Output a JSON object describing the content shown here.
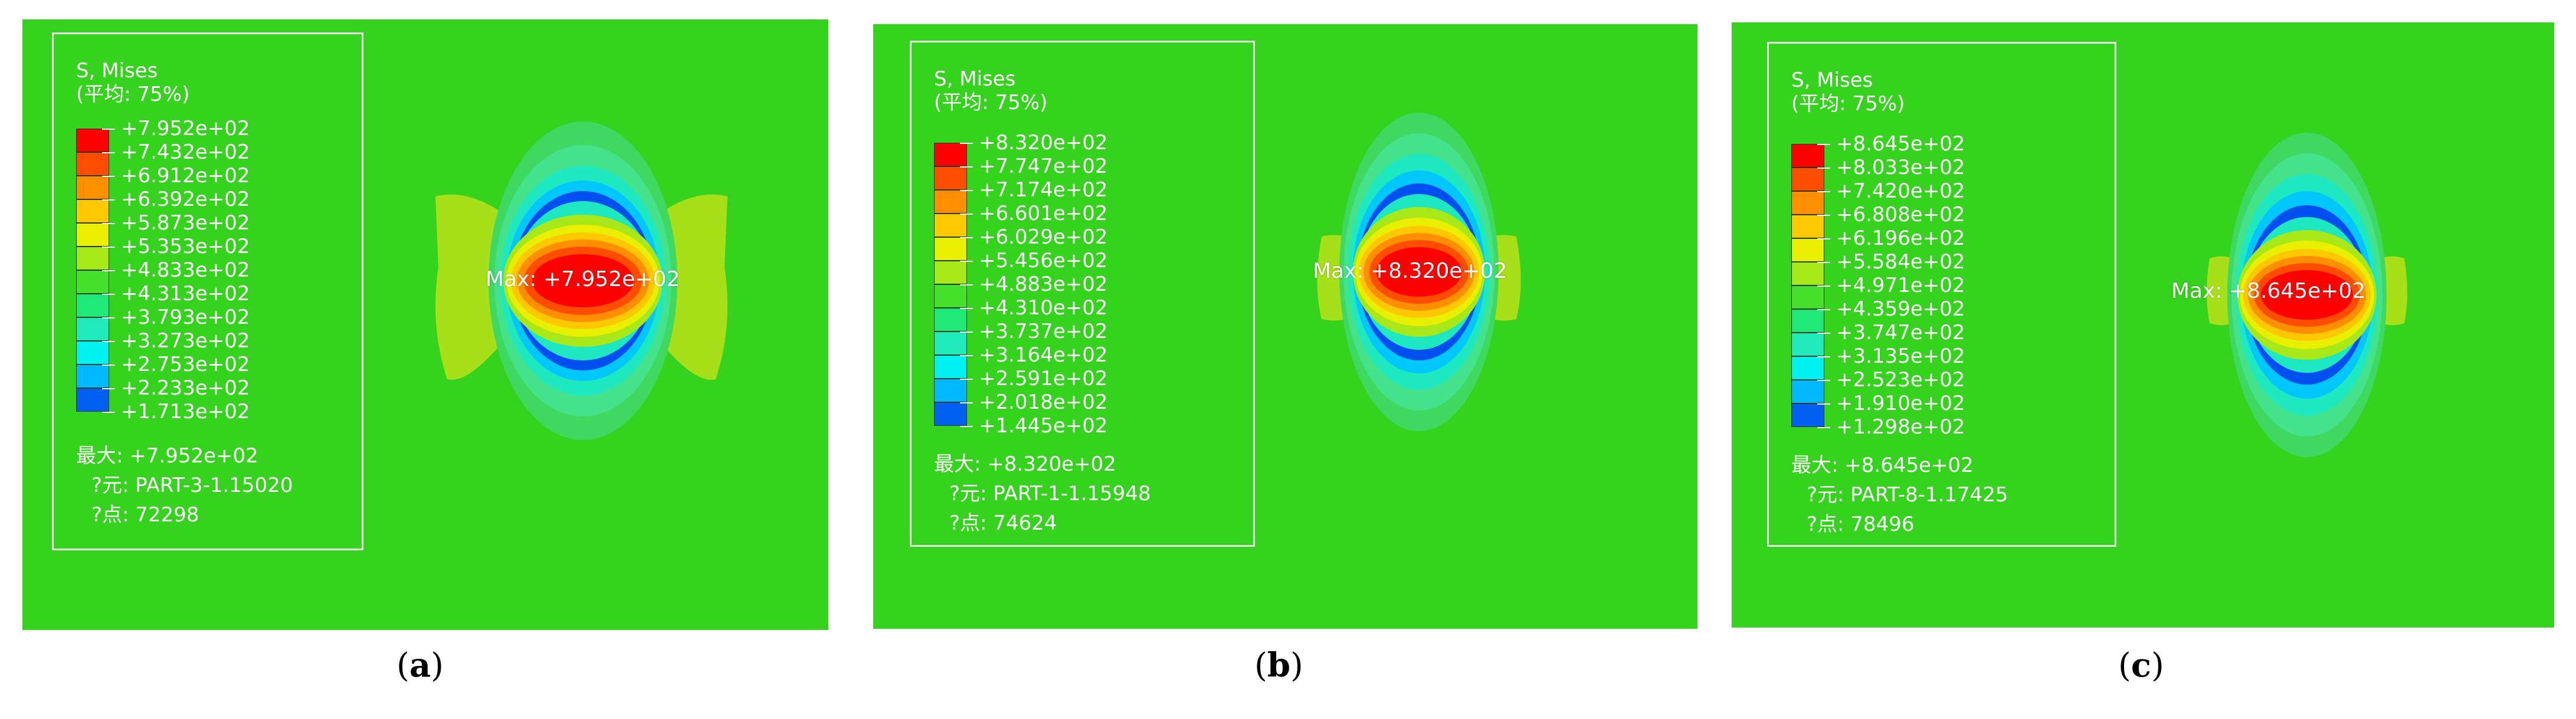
{
  "panels": [
    {
      "id": "a",
      "caption_open": "(",
      "caption_letter": "a",
      "caption_close": ")",
      "legend_title": "S, Mises",
      "legend_subtitle": "(平均: 75%)",
      "ticks": [
        "+7.952e+02",
        "+7.432e+02",
        "+6.912e+02",
        "+6.392e+02",
        "+5.873e+02",
        "+5.353e+02",
        "+4.833e+02",
        "+4.313e+02",
        "+3.793e+02",
        "+3.273e+02",
        "+2.753e+02",
        "+2.233e+02",
        "+1.713e+02"
      ],
      "info_max": "最大: +7.952e+02",
      "info_element": "?元: PART-3-1.15020",
      "info_node": "?点: 72298",
      "max_label": "Max: +7.952e+02"
    },
    {
      "id": "b",
      "caption_open": "(",
      "caption_letter": "b",
      "caption_close": ")",
      "legend_title": "S, Mises",
      "legend_subtitle": "(平均: 75%)",
      "ticks": [
        "+8.320e+02",
        "+7.747e+02",
        "+7.174e+02",
        "+6.601e+02",
        "+6.029e+02",
        "+5.456e+02",
        "+4.883e+02",
        "+4.310e+02",
        "+3.737e+02",
        "+3.164e+02",
        "+2.591e+02",
        "+2.018e+02",
        "+1.445e+02"
      ],
      "info_max": "最大: +8.320e+02",
      "info_element": "?元: PART-1-1.15948",
      "info_node": "?点: 74624",
      "max_label": "Max: +8.320e+02"
    },
    {
      "id": "c",
      "caption_open": "(",
      "caption_letter": "c",
      "caption_close": ")",
      "legend_title": "S, Mises",
      "legend_subtitle": "(平均: 75%)",
      "ticks": [
        "+8.645e+02",
        "+8.033e+02",
        "+7.420e+02",
        "+6.808e+02",
        "+6.196e+02",
        "+5.584e+02",
        "+4.971e+02",
        "+4.359e+02",
        "+3.747e+02",
        "+3.135e+02",
        "+2.523e+02",
        "+1.910e+02",
        "+1.298e+02"
      ],
      "info_max": "最大: +8.645e+02",
      "info_element": "?元: PART-8-1.17425",
      "info_node": "?点: 78496",
      "max_label": "Max: +8.645e+02"
    }
  ],
  "colors": {
    "background_field": "#33d41e",
    "contour_scale": [
      "#ff0000",
      "#ff4d00",
      "#ff8f00",
      "#ffc800",
      "#e8f000",
      "#a8e818",
      "#44e02a",
      "#1ee878",
      "#1eeaba",
      "#00f2f0",
      "#00b8ff",
      "#0060f0",
      "#0000e8"
    ]
  }
}
